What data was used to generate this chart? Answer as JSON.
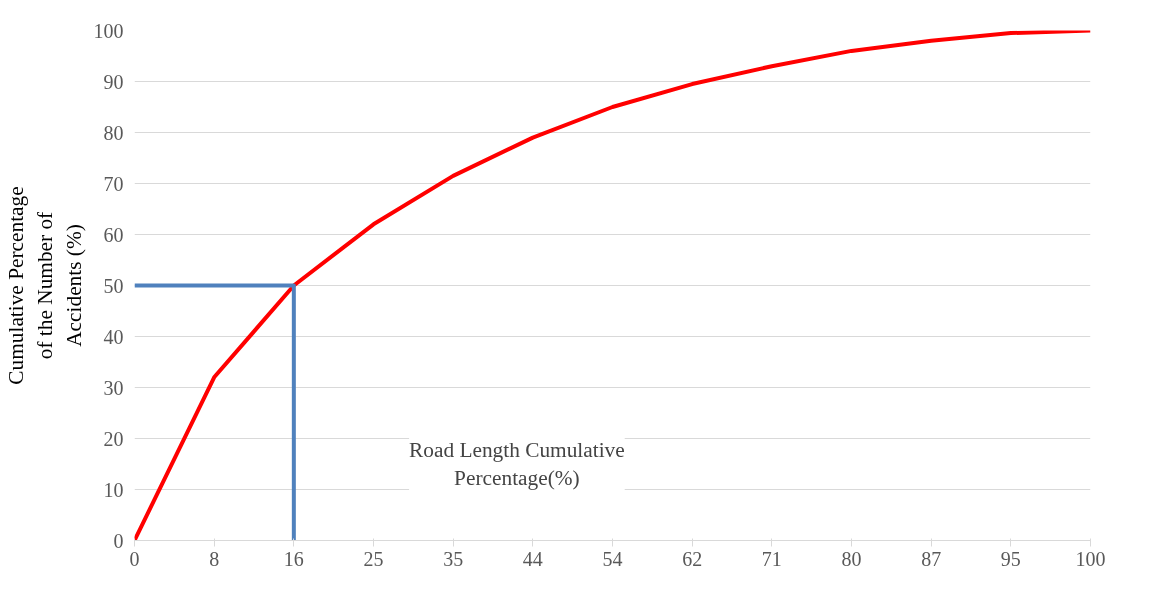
{
  "chart_data": {
    "type": "line",
    "xlabel": "Road Length Cumulative Percentage(%)",
    "ylabel": "Cumulative Percentage of the Number of Accidents (%)",
    "categories": [
      "0",
      "8",
      "16",
      "25",
      "35",
      "44",
      "54",
      "62",
      "71",
      "80",
      "87",
      "95",
      "100"
    ],
    "series": [
      {
        "color": "#ff0000",
        "values": [
          0,
          32,
          50,
          62,
          71.5,
          79,
          85,
          89.5,
          93,
          96,
          98,
          99.5,
          100
        ]
      },
      {
        "color": "#4f81bd",
        "x": [
          "0",
          "16",
          "16"
        ],
        "values": [
          50,
          50,
          0
        ]
      }
    ],
    "ylim": [
      0,
      100
    ],
    "yticks": [
      0,
      10,
      20,
      30,
      40,
      50,
      60,
      70,
      80,
      90,
      100
    ],
    "grid": "y",
    "marker": "none",
    "line_style": "solid"
  }
}
